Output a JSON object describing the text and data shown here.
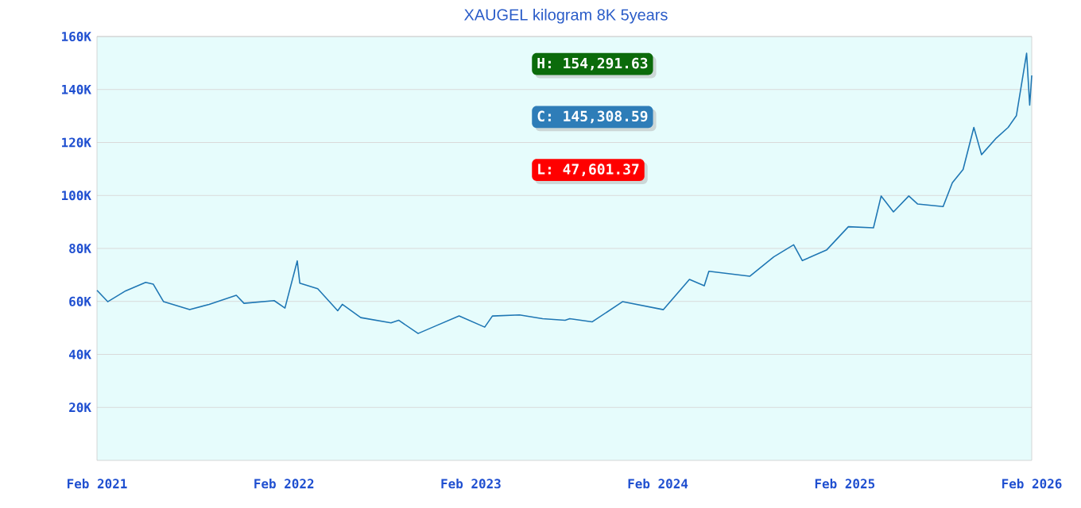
{
  "chart_data": {
    "type": "line",
    "title": "XAUGEL kilogram 8K 5years",
    "x": [
      "2021-02-01",
      "2021-02-22",
      "2021-03-29",
      "2021-05-07",
      "2021-05-22",
      "2021-06-11",
      "2021-08-01",
      "2021-09-08",
      "2021-10-31",
      "2021-11-15",
      "2022-01-13",
      "2022-02-03",
      "2022-02-27",
      "2022-03-04",
      "2022-04-08",
      "2022-05-17",
      "2022-05-26",
      "2022-07-01",
      "2022-08-29",
      "2022-09-13",
      "2022-10-21",
      "2022-11-26",
      "2023-01-09",
      "2023-02-28",
      "2023-03-15",
      "2023-05-07",
      "2023-06-21",
      "2023-08-04",
      "2023-08-13",
      "2023-09-26",
      "2023-11-24",
      "2024-02-12",
      "2024-04-03",
      "2024-05-02",
      "2024-05-11",
      "2024-07-30",
      "2024-09-15",
      "2024-10-24",
      "2024-11-10",
      "2024-12-28",
      "2025-02-08",
      "2025-03-29",
      "2025-04-13",
      "2025-05-07",
      "2025-06-06",
      "2025-06-23",
      "2025-08-12",
      "2025-08-30",
      "2025-09-20",
      "2025-10-11",
      "2025-10-26",
      "2025-11-24",
      "2025-12-17",
      "2026-01-02",
      "2026-01-22",
      "2026-01-28",
      "2026-02-01"
    ],
    "series": [
      {
        "color": "#1f77b4",
        "values": [
          64200,
          59900,
          64000,
          67200,
          66500,
          59900,
          56900,
          58900,
          62300,
          59300,
          60300,
          57500,
          75300,
          66900,
          64800,
          56500,
          58900,
          53900,
          51900,
          52900,
          47900,
          50900,
          54500,
          50300,
          54500,
          54900,
          53500,
          52900,
          53500,
          52300,
          59900,
          56900,
          68300,
          65900,
          71400,
          69500,
          76800,
          81400,
          75400,
          79500,
          88200,
          87800,
          99800,
          93800,
          99800,
          96800,
          95800,
          104800,
          109800,
          125700,
          115400,
          121700,
          125700,
          130100,
          153700,
          134100,
          145300
        ]
      }
    ],
    "xlim": [
      "2021-02-01",
      "2026-02-01"
    ],
    "xticks": [
      {
        "value": "2021-02-01",
        "label": "Feb 2021"
      },
      {
        "value": "2022-02-01",
        "label": "Feb 2022"
      },
      {
        "value": "2023-02-01",
        "label": "Feb 2023"
      },
      {
        "value": "2024-02-01",
        "label": "Feb 2024"
      },
      {
        "value": "2025-02-01",
        "label": "Feb 2025"
      },
      {
        "value": "2026-02-01",
        "label": "Feb 2026"
      }
    ],
    "ylim": [
      0,
      160000
    ],
    "yticks": [
      {
        "value": 20000,
        "label": "20K"
      },
      {
        "value": 40000,
        "label": "40K"
      },
      {
        "value": 60000,
        "label": "60K"
      },
      {
        "value": 80000,
        "label": "80K"
      },
      {
        "value": 100000,
        "label": "100K"
      },
      {
        "value": 120000,
        "label": "120K"
      },
      {
        "value": 140000,
        "label": "140K"
      },
      {
        "value": 160000,
        "label": "160K"
      }
    ],
    "grid": "y",
    "marker": "none",
    "line_style": "solid",
    "annotations": [
      "H: 154,291.63",
      "C: 145,308.59",
      "L: 47,601.37"
    ]
  }
}
